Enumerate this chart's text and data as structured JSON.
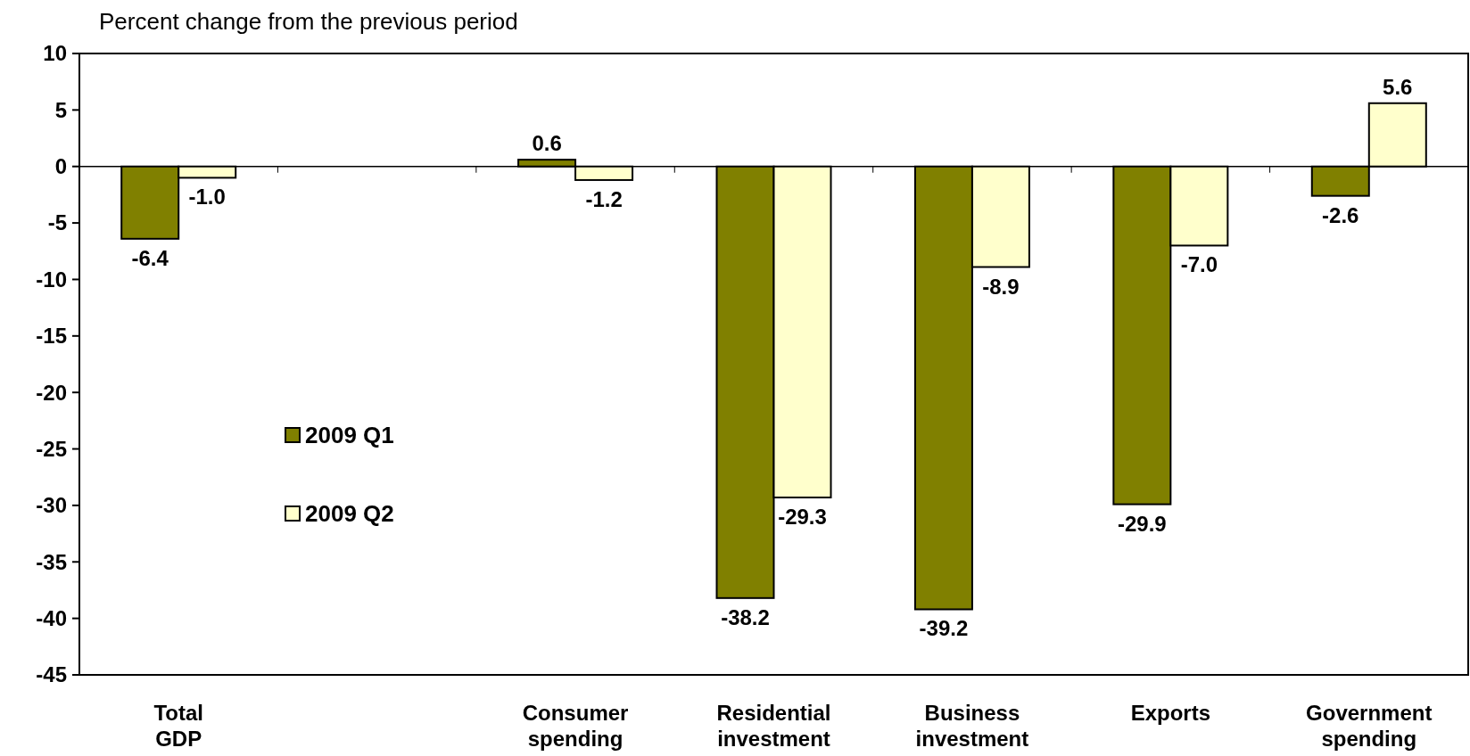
{
  "chart_data": {
    "type": "bar",
    "title": "Percent change from the previous period",
    "categories": [
      "Total GDP",
      null,
      "Consumer spending",
      "Residential investment",
      "Business investment",
      "Exports",
      "Government spending"
    ],
    "series": [
      {
        "name": "2009 Q1",
        "color": "#808000",
        "values": [
          -6.4,
          null,
          0.6,
          -38.2,
          -39.2,
          -29.9,
          -2.6
        ],
        "value_labels": [
          "-6.4",
          null,
          "0.6",
          "-38.2",
          "-39.2",
          "-29.9",
          "-2.6"
        ]
      },
      {
        "name": "2009 Q2",
        "color": "#ffffcc",
        "values": [
          -1.0,
          null,
          -1.2,
          -29.3,
          -8.9,
          -7.0,
          5.6
        ],
        "value_labels": [
          "-1.0",
          null,
          "-1.2",
          "-29.3",
          "-8.9",
          "-7.0",
          "5.6"
        ]
      }
    ],
    "ylim": [
      -45,
      10
    ],
    "yticks": [
      -45,
      -40,
      -35,
      -30,
      -25,
      -20,
      -15,
      -10,
      -5,
      0,
      5,
      10
    ],
    "legend": "left"
  }
}
